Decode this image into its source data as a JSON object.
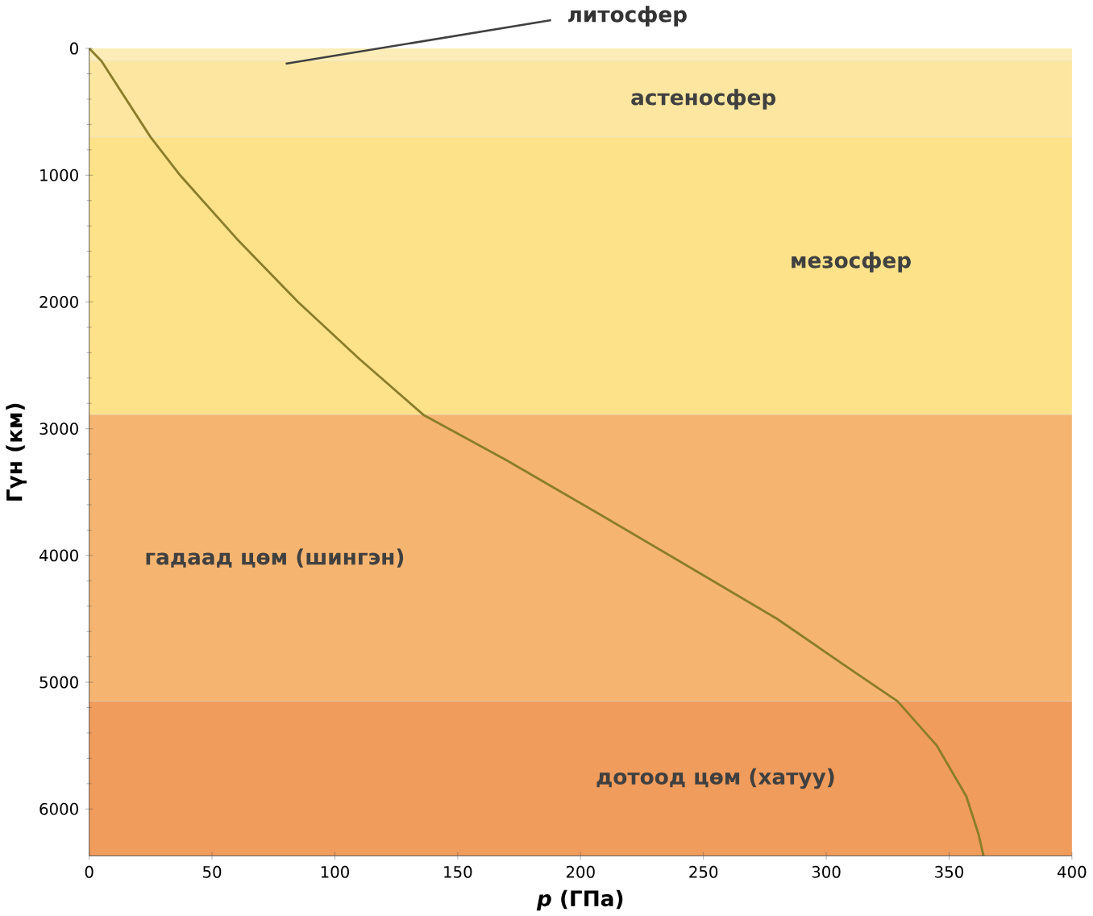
{
  "chart_data": {
    "type": "line",
    "xlabel": "*p* (ГПа)",
    "ylabel": "Гүн (км)",
    "x": [
      0,
      5,
      25,
      37,
      60,
      85,
      110,
      136,
      170,
      210,
      245,
      280,
      310,
      329,
      345,
      357,
      362,
      364
    ],
    "series": [
      {
        "color": "#8b7d2a",
        "values": [
          0,
          100,
          700,
          1000,
          1500,
          2000,
          2450,
          2890,
          3250,
          3700,
          4100,
          4500,
          4900,
          5150,
          5500,
          5900,
          6200,
          6370
        ]
      }
    ],
    "xlim": [
      0,
      400
    ],
    "xticks": [
      0,
      50,
      100,
      150,
      200,
      250,
      300,
      350,
      400
    ],
    "ylim": [
      6370,
      0
    ],
    "yticks": [
      0,
      1000,
      2000,
      3000,
      4000,
      5000,
      6000
    ],
    "bands": [
      {
        "axis": "y",
        "from": 0,
        "to": 100,
        "label": "литосфер",
        "color": "#fcedb8"
      },
      {
        "axis": "y",
        "from": 100,
        "to": 700,
        "label": "астеносфер",
        "color": "#fde7a0"
      },
      {
        "axis": "y",
        "from": 700,
        "to": 2890,
        "label": "мезосфер",
        "color": "#fde28a"
      },
      {
        "axis": "y",
        "from": 2890,
        "to": 5150,
        "label": "гадаад цөм (шингэн)",
        "color": "#f5b571"
      },
      {
        "axis": "y",
        "from": 5150,
        "to": 6370,
        "label": "дотоод цөм (хатуу)",
        "color": "#f09c5c"
      }
    ],
    "grid": false
  }
}
